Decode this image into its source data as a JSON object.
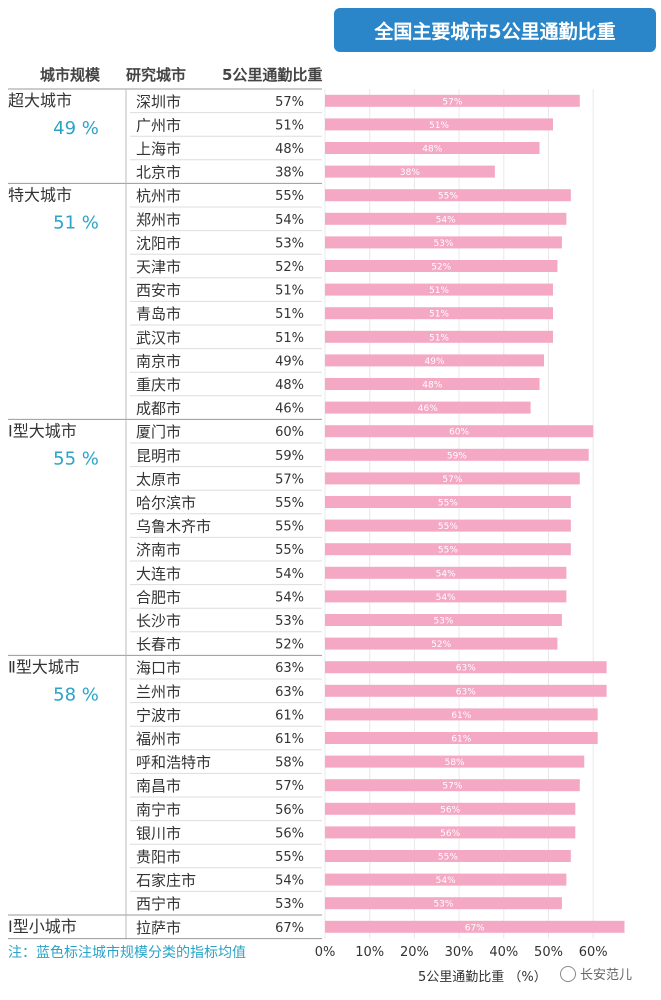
{
  "title": "全国主要城市5公里通勤比重",
  "headers": {
    "scale": "城市规模",
    "city": "研究城市",
    "value": "5公里通勤比重"
  },
  "groups": [
    {
      "name": "超大城市",
      "avg": "49 %",
      "start": 0,
      "end": 3
    },
    {
      "name": "特大城市",
      "avg": "51 %",
      "start": 4,
      "end": 13
    },
    {
      "name": "Ⅰ型大城市",
      "avg": "55 %",
      "start": 14,
      "end": 23
    },
    {
      "name": "Ⅱ型大城市",
      "avg": "58 %",
      "start": 24,
      "end": 34
    },
    {
      "name": "Ⅰ型小城市",
      "avg": "",
      "start": 35,
      "end": 35
    }
  ],
  "note": "注：蓝色标注城市规模分类的指标均值",
  "watermark": "长安范儿",
  "colors": {
    "bar": "#f4a8c4",
    "title_bg": "#2a86c8",
    "group_avg": "#2aa3c8",
    "separator": "#999999"
  },
  "chart_data": {
    "type": "bar",
    "orientation": "horizontal",
    "xlabel": "5公里通勤比重 （%）",
    "xlim": [
      0,
      70
    ],
    "xticks": [
      "0%",
      "10%",
      "20%",
      "30%",
      "40%",
      "50%",
      "60%"
    ],
    "categories": [
      "深圳市",
      "广州市",
      "上海市",
      "北京市",
      "杭州市",
      "郑州市",
      "沈阳市",
      "天津市",
      "西安市",
      "青岛市",
      "武汉市",
      "南京市",
      "重庆市",
      "成都市",
      "厦门市",
      "昆明市",
      "太原市",
      "哈尔滨市",
      "乌鲁木齐市",
      "济南市",
      "大连市",
      "合肥市",
      "长沙市",
      "长春市",
      "海口市",
      "兰州市",
      "宁波市",
      "福州市",
      "呼和浩特市",
      "南昌市",
      "南宁市",
      "银川市",
      "贵阳市",
      "石家庄市",
      "西宁市",
      "拉萨市"
    ],
    "values": [
      57,
      51,
      48,
      38,
      55,
      54,
      53,
      52,
      51,
      51,
      51,
      49,
      48,
      46,
      60,
      59,
      57,
      55,
      55,
      55,
      54,
      54,
      53,
      52,
      63,
      63,
      61,
      61,
      58,
      57,
      56,
      56,
      55,
      54,
      53,
      67
    ],
    "labels": [
      "57%",
      "51%",
      "48%",
      "38%",
      "55%",
      "54%",
      "53%",
      "52%",
      "51%",
      "51%",
      "51%",
      "49%",
      "48%",
      "46%",
      "60%",
      "59%",
      "57%",
      "55%",
      "55%",
      "55%",
      "54%",
      "54%",
      "53%",
      "52%",
      "63%",
      "63%",
      "61%",
      "61%",
      "58%",
      "57%",
      "56%",
      "56%",
      "55%",
      "54%",
      "53%",
      "67%"
    ]
  }
}
